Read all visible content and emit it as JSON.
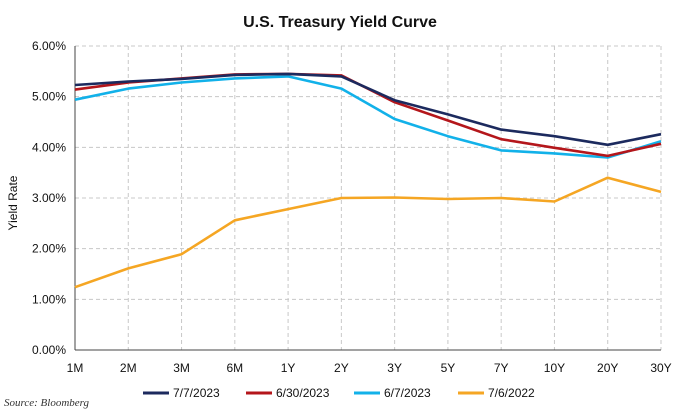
{
  "chart_data": {
    "type": "line",
    "title": "U.S. Treasury Yield Curve",
    "xlabel": "",
    "ylabel": "Yield Rate",
    "categories": [
      "1M",
      "2M",
      "3M",
      "6M",
      "1Y",
      "2Y",
      "3Y",
      "5Y",
      "7Y",
      "10Y",
      "20Y",
      "30Y"
    ],
    "ylim": [
      0,
      6
    ],
    "yticks": [
      "0.00%",
      "1.00%",
      "2.00%",
      "3.00%",
      "4.00%",
      "5.00%",
      "6.00%"
    ],
    "grid": "dashed",
    "legend_position": "bottom",
    "series": [
      {
        "name": "7/7/2023",
        "color": "#1c2a5e",
        "values": [
          5.23,
          5.3,
          5.35,
          5.43,
          5.45,
          5.4,
          4.93,
          4.65,
          4.35,
          4.22,
          4.05,
          4.26
        ]
      },
      {
        "name": "6/30/2023",
        "color": "#b4161b",
        "values": [
          5.14,
          5.28,
          5.36,
          5.44,
          5.45,
          5.42,
          4.89,
          4.53,
          4.16,
          3.99,
          3.83,
          4.07
        ]
      },
      {
        "name": "6/7/2023",
        "color": "#12b1e9",
        "values": [
          4.94,
          5.16,
          5.28,
          5.36,
          5.4,
          5.16,
          4.56,
          4.22,
          3.94,
          3.88,
          3.8,
          4.12
        ]
      },
      {
        "name": "7/6/2022",
        "color": "#f5a623",
        "values": [
          1.24,
          1.61,
          1.89,
          2.56,
          2.78,
          3.0,
          3.01,
          2.98,
          3.0,
          2.93,
          3.4,
          3.12
        ]
      }
    ]
  },
  "source_text": "Source: Bloomberg"
}
